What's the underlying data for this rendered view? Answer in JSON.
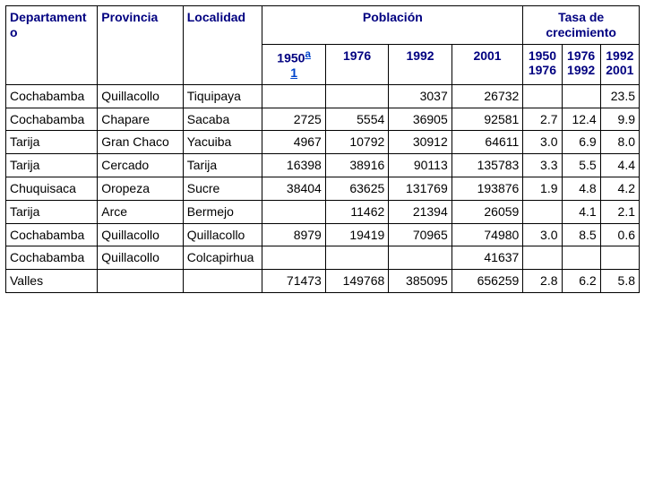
{
  "headers": {
    "departamento": "Departamento",
    "provincia": "Provincia",
    "localidad": "Localidad",
    "poblacion": "Población",
    "tasa": "Tasa de crecimiento",
    "p1950_prefix": "1950",
    "p1950_sup": "a",
    "p1950_foot": "1",
    "p1976": "1976",
    "p1992": "1992",
    "p2001": "2001",
    "t1": "1950\n1976",
    "t2": "1976\n1992",
    "t3": "1992\n2001"
  },
  "rows": [
    {
      "dep": "Cochabamba",
      "prov": "Quillacollo",
      "loc": "Tiquipaya",
      "p50": "",
      "p76": "",
      "p92": "3037",
      "p01": "26732",
      "t1": "",
      "t2": "",
      "t3": "23.5"
    },
    {
      "dep": "Cochabamba",
      "prov": "Chapare",
      "loc": "Sacaba",
      "p50": "2725",
      "p76": "5554",
      "p92": "36905",
      "p01": "92581",
      "t1": "2.7",
      "t2": "12.4",
      "t3": "9.9"
    },
    {
      "dep": "Tarija",
      "prov": "Gran Chaco",
      "loc": "Yacuiba",
      "p50": "4967",
      "p76": "10792",
      "p92": "30912",
      "p01": "64611",
      "t1": "3.0",
      "t2": "6.9",
      "t3": "8.0"
    },
    {
      "dep": "Tarija",
      "prov": "Cercado",
      "loc": "Tarija",
      "p50": "16398",
      "p76": "38916",
      "p92": "90113",
      "p01": "135783",
      "t1": "3.3",
      "t2": "5.5",
      "t3": "4.4"
    },
    {
      "dep": "Chuquisaca",
      "prov": "Oropeza",
      "loc": "Sucre",
      "p50": "38404",
      "p76": "63625",
      "p92": "131769",
      "p01": "193876",
      "t1": "1.9",
      "t2": "4.8",
      "t3": "4.2"
    },
    {
      "dep": "Tarija",
      "prov": "Arce",
      "loc": "Bermejo",
      "p50": "",
      "p76": "11462",
      "p92": "21394",
      "p01": "26059",
      "t1": "",
      "t2": "4.1",
      "t3": "2.1"
    },
    {
      "dep": "Cochabamba",
      "prov": "Quillacollo",
      "loc": "Quillacollo",
      "p50": "8979",
      "p76": "19419",
      "p92": "70965",
      "p01": "74980",
      "t1": "3.0",
      "t2": "8.5",
      "t3": "0.6"
    },
    {
      "dep": "Cochabamba",
      "prov": "Quillacollo",
      "loc": "Colcapirhua",
      "p50": "",
      "p76": "",
      "p92": "",
      "p01": "41637",
      "t1": "",
      "t2": "",
      "t3": ""
    },
    {
      "dep": "Valles",
      "prov": "",
      "loc": "",
      "p50": "71473",
      "p76": "149768",
      "p92": "385095",
      "p01": "656259",
      "t1": "2.8",
      "t2": "6.2",
      "t3": "5.8"
    }
  ]
}
